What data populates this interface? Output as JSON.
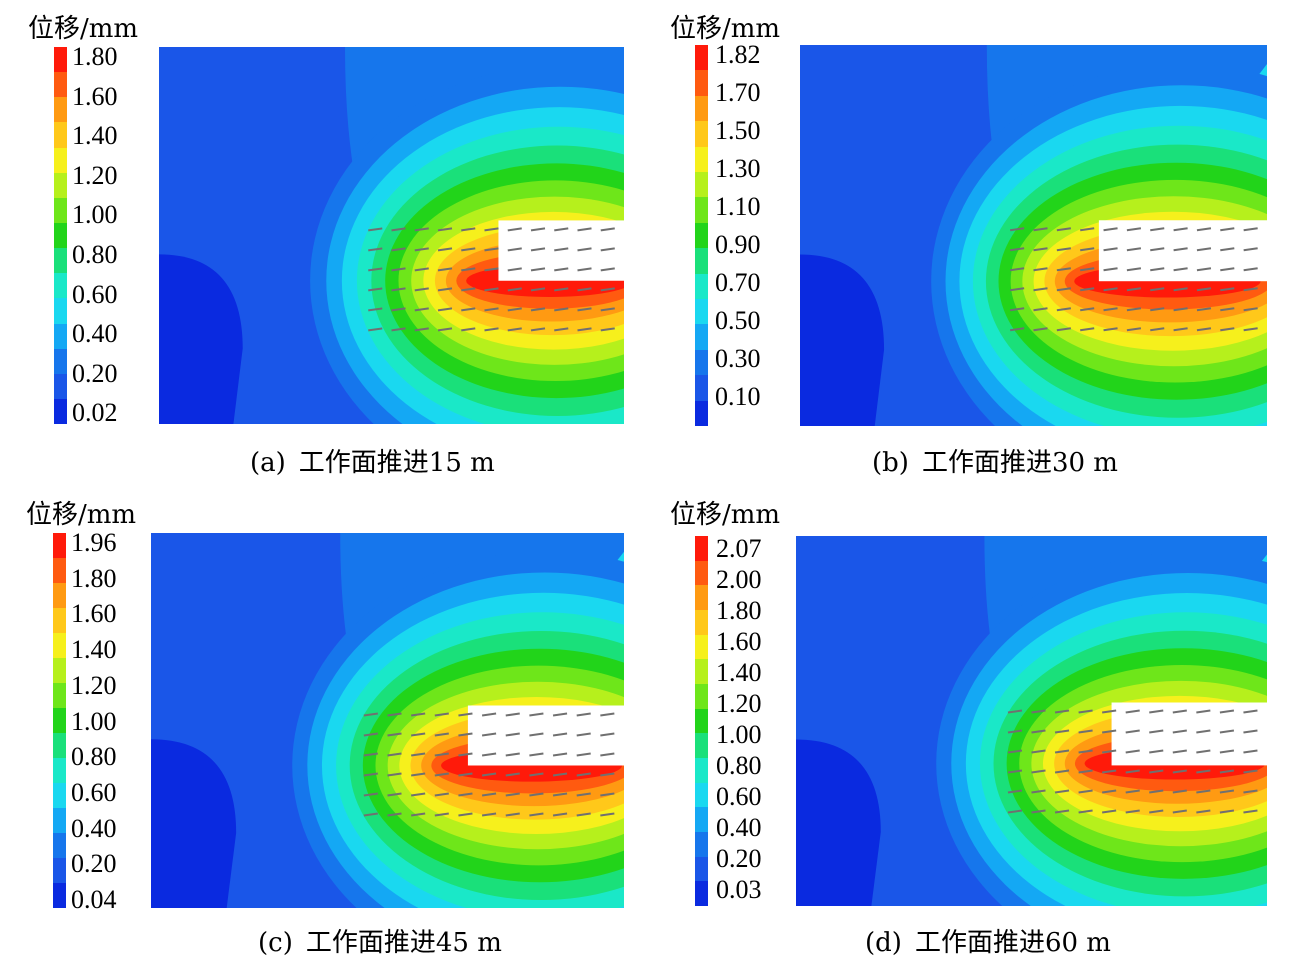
{
  "unit_label": "位移/mm",
  "panels": [
    {
      "id": "a",
      "label": "(a)",
      "title": "工作面推进15 m",
      "ticks": [
        "1.80",
        "1.60",
        "1.40",
        "1.20",
        "1.00",
        "0.80",
        "0.60",
        "0.40",
        "0.20",
        "0.02"
      ]
    },
    {
      "id": "b",
      "label": "(b)",
      "title": "工作面推进30 m",
      "ticks": [
        "1.82",
        "1.70",
        "1.50",
        "1.30",
        "1.10",
        "0.90",
        "0.70",
        "0.50",
        "0.30",
        "0.10"
      ]
    },
    {
      "id": "c",
      "label": "(c)",
      "title": "工作面推进45 m",
      "ticks": [
        "1.96",
        "1.80",
        "1.60",
        "1.40",
        "1.20",
        "1.00",
        "0.80",
        "0.60",
        "0.40",
        "0.20",
        "0.04"
      ]
    },
    {
      "id": "d",
      "label": "(d)",
      "title": "工作面推进60 m",
      "ticks": [
        "2.07",
        "2.00",
        "1.80",
        "1.60",
        "1.40",
        "1.20",
        "1.00",
        "0.80",
        "0.60",
        "0.40",
        "0.20",
        "0.03"
      ]
    }
  ],
  "colors": {
    "scale": [
      "#ff1a0a",
      "#ff5a10",
      "#ff9a12",
      "#ffc81a",
      "#f6f01c",
      "#b6f01c",
      "#6ee61a",
      "#22d41a",
      "#1ae07a",
      "#1ae8c8",
      "#1ad8f0",
      "#14a8f4",
      "#1676ec",
      "#1a56e8",
      "#0a2ae0"
    ],
    "excavation": "#ffffff",
    "vectors": "#707070"
  }
}
